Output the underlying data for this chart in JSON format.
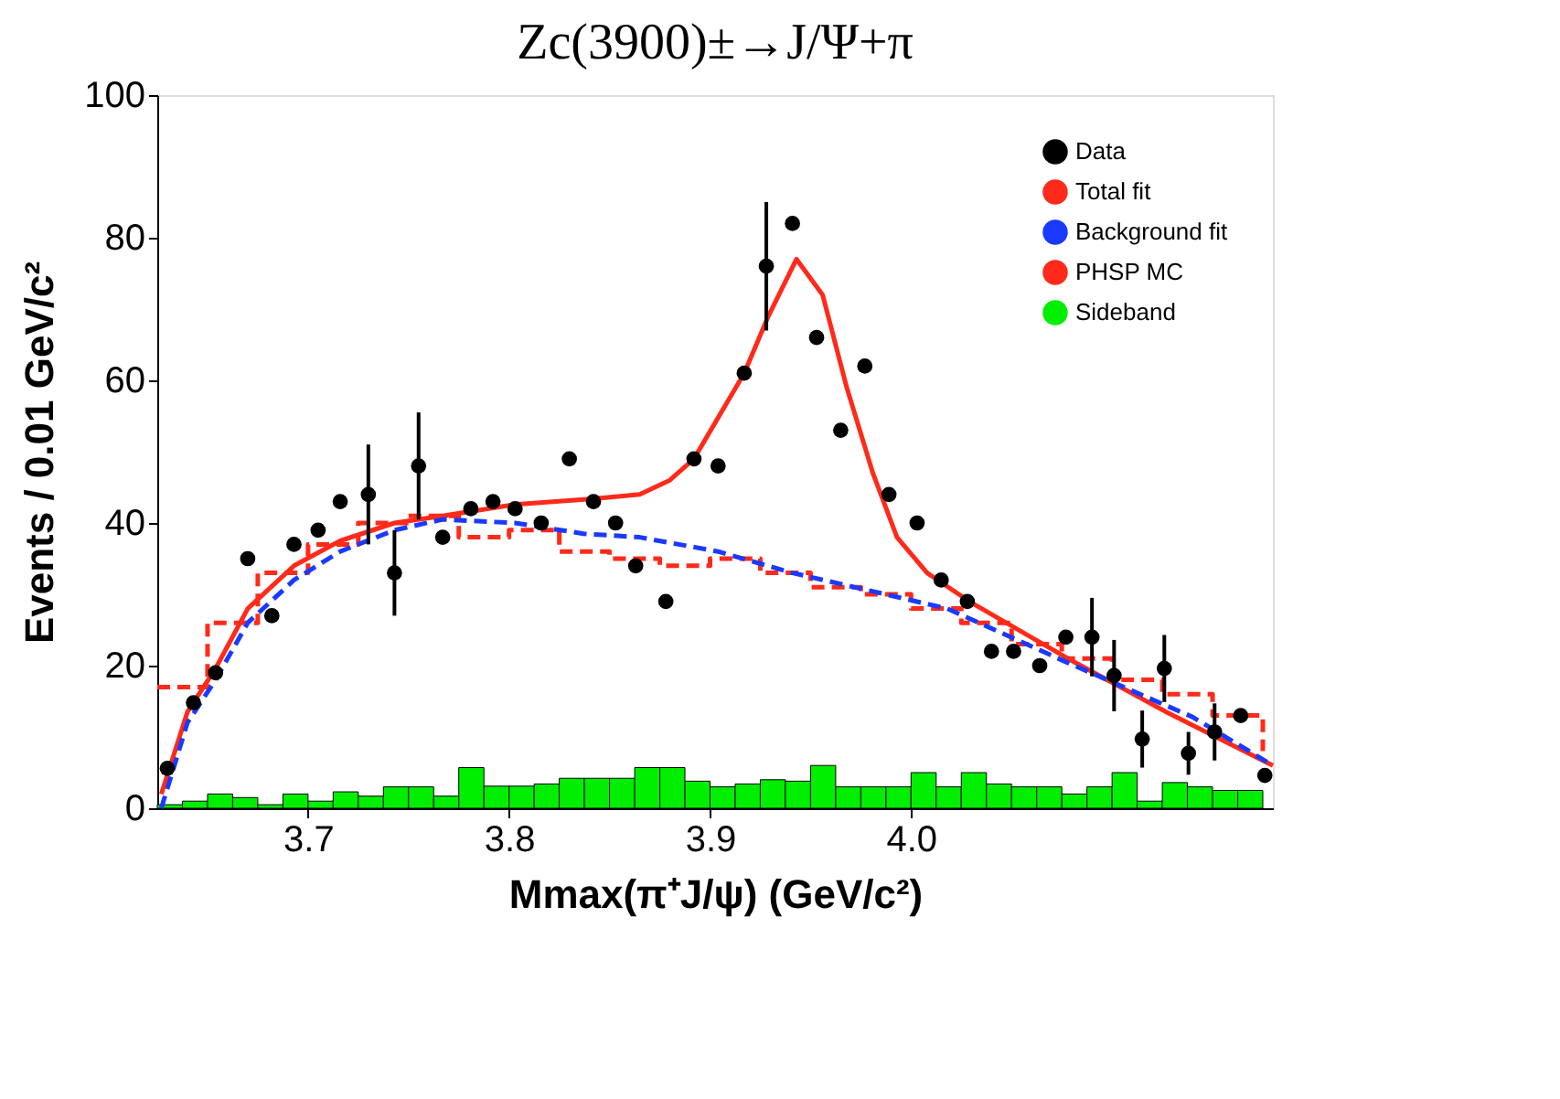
{
  "chart_data": {
    "type": "line",
    "title": "Zc(3900)±→J/Ψ+π",
    "xlabel": "Mmax(π⁺J/ψ) (GeV/c²)",
    "ylabel": "Events / 0.01 GeV/c²",
    "xlim": [
      3.625,
      4.18
    ],
    "ylim": [
      0,
      100
    ],
    "xticks": [
      {
        "value": 3.7,
        "label": "3.7"
      },
      {
        "value": 3.8,
        "label": "3.8"
      },
      {
        "value": 3.9,
        "label": "3.9"
      },
      {
        "value": 4.0,
        "label": "4.0"
      }
    ],
    "yticks": [
      0,
      20,
      40,
      60,
      80,
      100
    ],
    "grid": false,
    "legend": "top right",
    "series": [
      {
        "name": "Data",
        "type": "scatter",
        "marker": "circle",
        "color": "#000000",
        "x": [
          3.63,
          3.643,
          3.654,
          3.67,
          3.682,
          3.693,
          3.705,
          3.716,
          3.73,
          3.743,
          3.755,
          3.767,
          3.781,
          3.792,
          3.803,
          3.816,
          3.83,
          3.842,
          3.853,
          3.863,
          3.878,
          3.892,
          3.904,
          3.917,
          3.928,
          3.941,
          3.953,
          3.965,
          3.977,
          3.989,
          4.003,
          4.015,
          4.028,
          4.04,
          4.051,
          4.064,
          4.077,
          4.09,
          4.101,
          4.115,
          4.126,
          4.138,
          4.151,
          4.164,
          4.176
        ],
        "values": [
          5.6,
          14.8,
          19,
          35,
          27,
          37,
          39,
          43,
          44,
          33,
          48,
          38,
          42,
          43,
          42,
          40,
          49,
          43,
          40,
          34,
          29,
          49,
          48,
          61,
          76,
          82,
          66,
          53,
          62,
          44,
          40,
          32,
          29,
          22,
          22,
          20,
          24,
          24,
          18.6,
          9.7,
          19.6,
          7.7,
          10.7,
          13,
          4.6
        ],
        "errors": [
          null,
          null,
          null,
          null,
          null,
          null,
          null,
          null,
          7,
          6,
          7.5,
          null,
          null,
          null,
          null,
          null,
          null,
          null,
          null,
          null,
          null,
          null,
          null,
          null,
          9,
          null,
          null,
          null,
          null,
          null,
          null,
          null,
          null,
          null,
          null,
          null,
          null,
          5.5,
          5,
          4,
          4.7,
          3,
          4,
          null,
          null
        ]
      },
      {
        "name": "Total fit",
        "line_style": "solid",
        "color": "#ff2a1a",
        "x": [
          3.627,
          3.64,
          3.654,
          3.67,
          3.693,
          3.716,
          3.743,
          3.767,
          3.803,
          3.842,
          3.865,
          3.88,
          3.892,
          3.917,
          3.929,
          3.943,
          3.956,
          3.968,
          3.981,
          3.993,
          4.008,
          4.029,
          4.078,
          4.127,
          4.18
        ],
        "values": [
          2,
          13.5,
          19.6,
          28,
          34,
          37.5,
          40,
          41,
          42.6,
          43.4,
          44,
          46,
          49,
          61,
          69,
          77,
          72,
          59,
          47,
          38,
          33,
          29,
          21,
          13.5,
          6
        ]
      },
      {
        "name": "Background fit",
        "line_style": "dashed",
        "color": "#1a3aff",
        "x": [
          3.627,
          3.64,
          3.654,
          3.67,
          3.693,
          3.716,
          3.743,
          3.767,
          3.803,
          3.837,
          3.865,
          3.904,
          3.941,
          4.018,
          4.078,
          4.14,
          4.18
        ],
        "values": [
          0,
          12,
          18,
          26,
          32,
          36,
          39,
          40.5,
          40,
          38.5,
          38,
          36,
          33,
          28,
          20.4,
          12.8,
          6
        ]
      },
      {
        "name": "PHSP MC",
        "type": "step",
        "line_style": "dashed",
        "color": "#ff2a1a",
        "x": [
          3.625,
          3.65,
          3.675,
          3.7,
          3.725,
          3.75,
          3.775,
          3.8,
          3.825,
          3.85,
          3.875,
          3.9,
          3.925,
          3.95,
          3.975,
          4.0,
          4.025,
          4.05,
          4.075,
          4.1,
          4.125,
          4.15,
          4.175
        ],
        "values": [
          17,
          26,
          33,
          37,
          40,
          41,
          38,
          39,
          36,
          35,
          34,
          35,
          33,
          31,
          30,
          28,
          26,
          23,
          21,
          18,
          16,
          13,
          8
        ]
      },
      {
        "name": "Sideband",
        "type": "histogram",
        "color": "#00ee00",
        "bins": [
          3.625,
          3.6375,
          3.65,
          3.6625,
          3.675,
          3.6875,
          3.7,
          3.7125,
          3.725,
          3.7375,
          3.75,
          3.7625,
          3.775,
          3.7875,
          3.8,
          3.8125,
          3.825,
          3.8375,
          3.85,
          3.8625,
          3.875,
          3.8875,
          3.9,
          3.9125,
          3.925,
          3.9375,
          3.95,
          3.9625,
          3.975,
          3.9875,
          4.0,
          4.0125,
          4.025,
          4.0375,
          4.05,
          4.0625,
          4.075,
          4.0875,
          4.1,
          4.1125,
          4.125,
          4.1375,
          4.15,
          4.1625,
          4.175
        ],
        "values": [
          0.5,
          1,
          2,
          1.5,
          0.5,
          2,
          1,
          2.3,
          1.7,
          3,
          3,
          1.7,
          5.7,
          3.1,
          3.1,
          3.4,
          4.2,
          4.2,
          4.2,
          5.7,
          5.7,
          3.8,
          3,
          3.4,
          4,
          3.8,
          6,
          3,
          3,
          3,
          5,
          3,
          5,
          3.4,
          3,
          3,
          2,
          3,
          5,
          1,
          3.6,
          3,
          2.5,
          2.5
        ]
      }
    ]
  }
}
